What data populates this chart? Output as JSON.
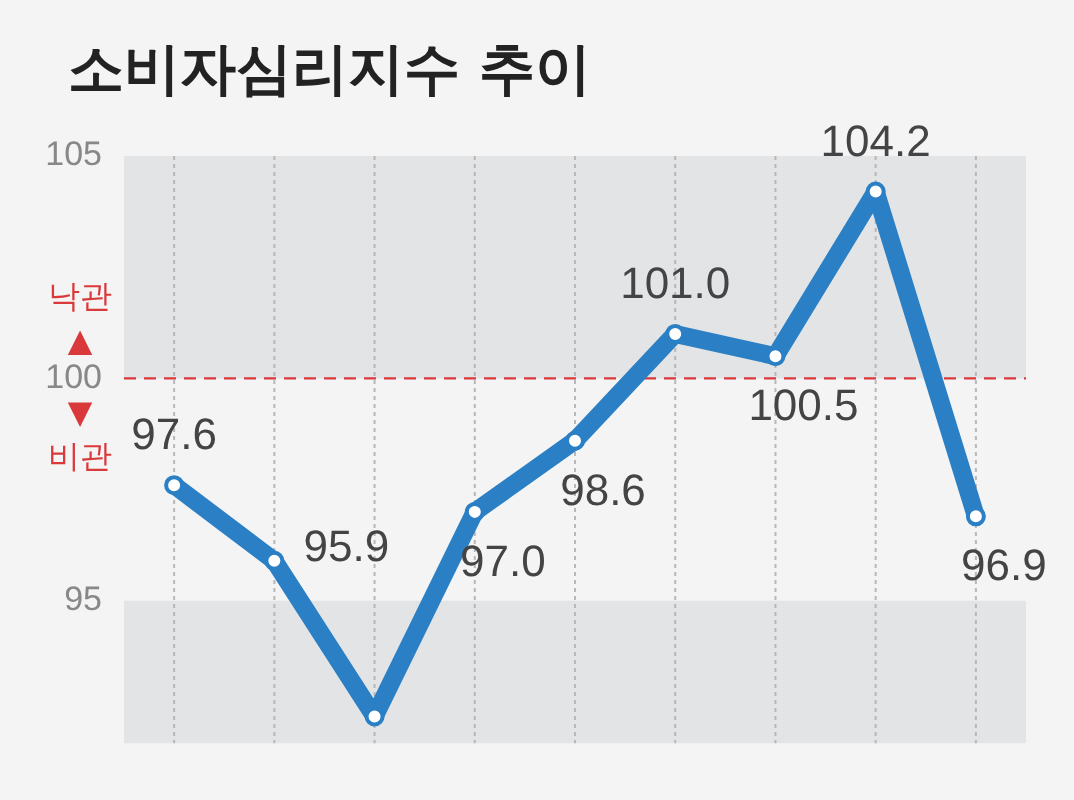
{
  "chart_data": {
    "type": "line",
    "title": "소비자심리지수 추이",
    "categories": [
      null,
      null,
      null,
      null,
      null,
      null,
      null,
      null,
      null
    ],
    "series": [
      {
        "color": "#2b80c5",
        "values": [
          97.6,
          95.9,
          92.4,
          97.0,
          98.6,
          101.0,
          100.5,
          104.2,
          96.9
        ],
        "value_labels": [
          "97.6",
          "95.9",
          null,
          "97.0",
          "98.6",
          "101.0",
          "100.5",
          "104.2",
          "96.9"
        ]
      }
    ],
    "ylim": [
      91.8,
      105
    ],
    "yticks": [
      95,
      100,
      105
    ],
    "grid": "x",
    "legend": false,
    "marker": "circle",
    "line_style": "solid",
    "ref_lines": [
      {
        "axis": "y",
        "value": 100,
        "color": "#d9393b",
        "line_style": "dashed"
      }
    ],
    "bands": [
      {
        "axis": "y",
        "from": 100,
        "to": 105,
        "color": "#e3e4e6"
      },
      {
        "axis": "y",
        "from": 91.8,
        "to": 95,
        "color": "#e3e4e6"
      }
    ],
    "annotations": [
      "낙관",
      "▲",
      "▼",
      "비관"
    ]
  }
}
